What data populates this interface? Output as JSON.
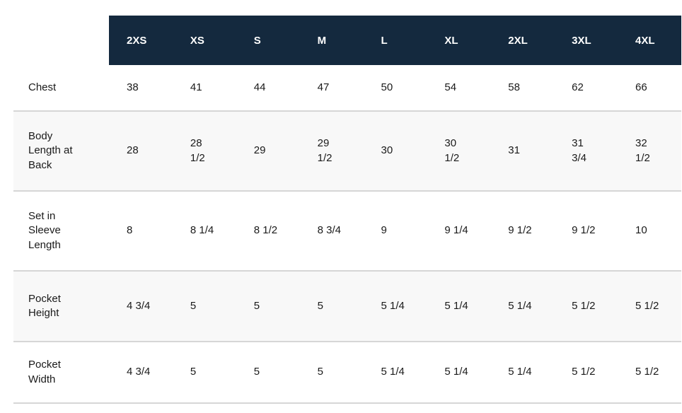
{
  "chart_data": {
    "type": "table",
    "corner_cell": "",
    "columns": [
      "2XS",
      "XS",
      "S",
      "M",
      "L",
      "XL",
      "2XL",
      "3XL",
      "4XL"
    ],
    "rows": [
      {
        "label": "Chest",
        "values": [
          "38",
          "41",
          "44",
          "47",
          "50",
          "54",
          "58",
          "62",
          "66"
        ]
      },
      {
        "label": "Body Length at Back",
        "values": [
          "28",
          "28 1/2",
          "29",
          "29 1/2",
          "30",
          "30 1/2",
          "31",
          "31 3/4",
          "32 1/2"
        ]
      },
      {
        "label": "Set in Sleeve Length",
        "values": [
          "8",
          "8 1/4",
          "8 1/2",
          "8 3/4",
          "9",
          "9 1/4",
          "9 1/2",
          "9 1/2",
          "10"
        ]
      },
      {
        "label": "Pocket Height",
        "values": [
          "4 3/4",
          "5",
          "5",
          "5",
          "5 1/4",
          "5 1/4",
          "5 1/4",
          "5 1/2",
          "5 1/2"
        ]
      },
      {
        "label": "Pocket Width",
        "values": [
          "4 3/4",
          "5",
          "5",
          "5",
          "5 1/4",
          "5 1/4",
          "5 1/4",
          "5 1/2",
          "5 1/2"
        ]
      }
    ],
    "layout": {
      "header_position": "top",
      "label_column_position": "left",
      "grid": "horizontal-dividers-only",
      "row_striping": "rows 2 and 4 shaded"
    }
  },
  "colors": {
    "page_bg": "#ffffff",
    "header_bg": "#14293e",
    "header_text": "#ffffff",
    "row_bg": "#ffffff",
    "row_alt_bg": "#f8f8f8",
    "divider": "#d6d6d6",
    "text": "#1a1a1a"
  }
}
